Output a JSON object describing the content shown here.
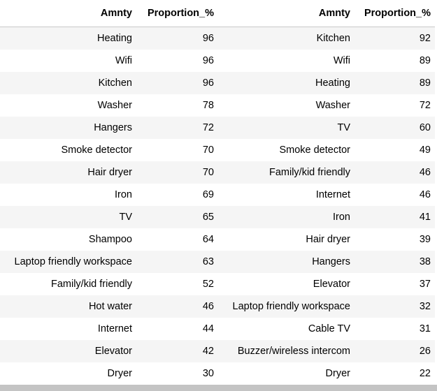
{
  "tables": [
    {
      "headers": [
        "Amnty",
        "Proportion_%"
      ],
      "rows": [
        [
          "Heating",
          "96"
        ],
        [
          "Wifi",
          "96"
        ],
        [
          "Kitchen",
          "96"
        ],
        [
          "Washer",
          "78"
        ],
        [
          "Hangers",
          "72"
        ],
        [
          "Smoke detector",
          "70"
        ],
        [
          "Hair dryer",
          "70"
        ],
        [
          "Iron",
          "69"
        ],
        [
          "TV",
          "65"
        ],
        [
          "Shampoo",
          "64"
        ],
        [
          "Laptop friendly workspace",
          "63"
        ],
        [
          "Family/kid friendly",
          "52"
        ],
        [
          "Hot water",
          "46"
        ],
        [
          "Internet",
          "44"
        ],
        [
          "Elevator",
          "42"
        ],
        [
          "Dryer",
          "30"
        ]
      ]
    },
    {
      "headers": [
        "Amnty",
        "Proportion_%"
      ],
      "rows": [
        [
          "Kitchen",
          "92"
        ],
        [
          "Wifi",
          "89"
        ],
        [
          "Heating",
          "89"
        ],
        [
          "Washer",
          "72"
        ],
        [
          "TV",
          "60"
        ],
        [
          "Smoke detector",
          "49"
        ],
        [
          "Family/kid friendly",
          "46"
        ],
        [
          "Internet",
          "46"
        ],
        [
          "Iron",
          "41"
        ],
        [
          "Hair dryer",
          "39"
        ],
        [
          "Hangers",
          "38"
        ],
        [
          "Elevator",
          "37"
        ],
        [
          "Laptop friendly workspace",
          "32"
        ],
        [
          "Cable TV",
          "31"
        ],
        [
          "Buzzer/wireless intercom",
          "26"
        ],
        [
          "Dryer",
          "22"
        ]
      ]
    }
  ]
}
